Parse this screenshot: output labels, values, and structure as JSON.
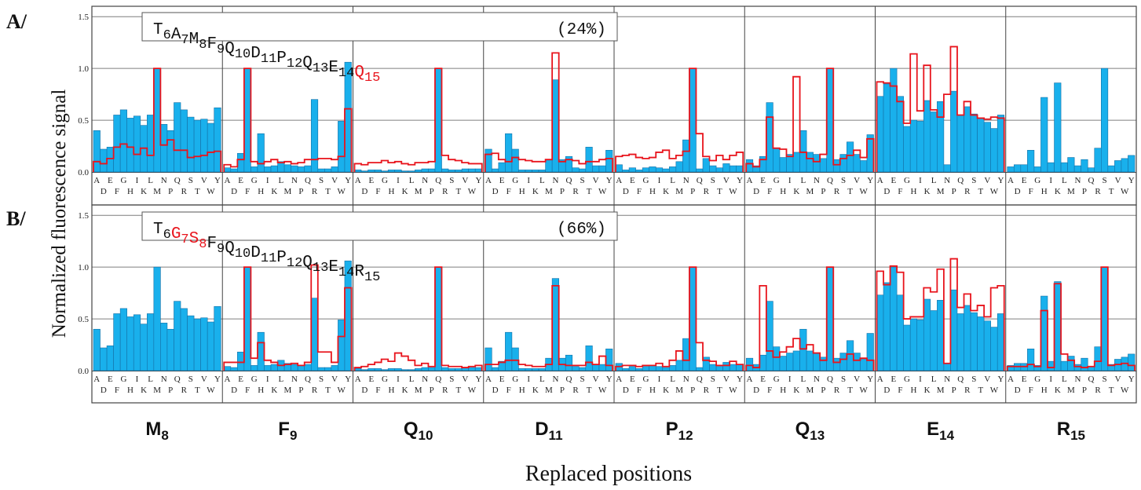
{
  "colors": {
    "bar_fill": "#19b0ec",
    "bar_stroke": "#1570a6",
    "outline": "#e8141c",
    "frame": "#444444",
    "grid": "#7f7f7f",
    "panel_label": "#111111"
  },
  "figure": {
    "ylabel": "Normalized fluorescence signal",
    "xlabel": "Replaced positions",
    "position_labels": [
      {
        "base": "M",
        "sub": "8"
      },
      {
        "base": "F",
        "sub": "9"
      },
      {
        "base": "Q",
        "sub": "10"
      },
      {
        "base": "D",
        "sub": "11"
      },
      {
        "base": "P",
        "sub": "12"
      },
      {
        "base": "Q",
        "sub": "13"
      },
      {
        "base": "E",
        "sub": "14"
      },
      {
        "base": "R",
        "sub": "15"
      }
    ],
    "residues_top": [
      "A",
      "E",
      "G",
      "I",
      "L",
      "N",
      "Q",
      "S",
      "V",
      "Y"
    ],
    "residues_bottom": [
      "D",
      "F",
      "H",
      "K",
      "M",
      "P",
      "R",
      "T",
      "W"
    ]
  },
  "chart_data": {
    "type": "bar",
    "categories": [
      "A",
      "D",
      "E",
      "F",
      "G",
      "H",
      "I",
      "K",
      "L",
      "M",
      "N",
      "P",
      "Q",
      "R",
      "S",
      "T",
      "V",
      "W",
      "Y"
    ],
    "yticks": [
      "0.0",
      "0.5",
      "1.0",
      "1.5"
    ],
    "ylim": [
      0,
      1.6
    ],
    "panels": [
      {
        "label": "A/",
        "sequence": [
          {
            "res": "T",
            "num": "6",
            "red": false
          },
          {
            "res": "A",
            "num": "7",
            "red": false
          },
          {
            "res": "M",
            "num": "8",
            "red": false
          },
          {
            "res": "F",
            "num": "9",
            "red": false
          },
          {
            "res": "Q",
            "num": "10",
            "red": false
          },
          {
            "res": "D",
            "num": "11",
            "red": false
          },
          {
            "res": "P",
            "num": "12",
            "red": false
          },
          {
            "res": "Q",
            "num": "13",
            "red": false
          },
          {
            "res": "E",
            "num": "14",
            "red": false
          },
          {
            "res": "Q",
            "num": "15",
            "red": true
          }
        ],
        "percent": "(24%)",
        "positions": [
          {
            "bars": [
              0.4,
              0.22,
              0.24,
              0.55,
              0.6,
              0.52,
              0.54,
              0.45,
              0.55,
              1.0,
              0.46,
              0.4,
              0.67,
              0.6,
              0.53,
              0.5,
              0.51,
              0.47,
              0.62
            ],
            "outline": [
              0.1,
              0.08,
              0.13,
              0.24,
              0.27,
              0.24,
              0.17,
              0.23,
              0.16,
              1.0,
              0.26,
              0.31,
              0.21,
              0.21,
              0.14,
              0.15,
              0.16,
              0.19,
              0.2
            ]
          },
          {
            "bars": [
              0.04,
              0.03,
              0.18,
              1.0,
              0.05,
              0.37,
              0.05,
              0.06,
              0.1,
              0.07,
              0.06,
              0.05,
              0.06,
              0.7,
              0.03,
              0.03,
              0.05,
              0.49,
              1.06
            ],
            "outline": [
              0.07,
              0.05,
              0.12,
              1.0,
              0.1,
              0.08,
              0.1,
              0.12,
              0.09,
              0.1,
              0.08,
              0.09,
              0.12,
              0.12,
              0.13,
              0.13,
              0.12,
              0.15,
              0.61
            ]
          },
          {
            "bars": [
              0.02,
              0.01,
              0.02,
              0.02,
              0.01,
              0.02,
              0.02,
              0.01,
              0.01,
              0.02,
              0.03,
              0.03,
              1.0,
              0.03,
              0.02,
              0.02,
              0.03,
              0.03,
              0.03
            ],
            "outline": [
              0.08,
              0.07,
              0.09,
              0.09,
              0.11,
              0.09,
              0.1,
              0.08,
              0.07,
              0.09,
              0.09,
              0.1,
              1.0,
              0.16,
              0.12,
              0.11,
              0.09,
              0.08,
              0.08
            ]
          },
          {
            "bars": [
              0.22,
              0.03,
              0.09,
              0.37,
              0.22,
              0.02,
              0.02,
              0.02,
              0.02,
              0.12,
              0.89,
              0.12,
              0.15,
              0.04,
              0.03,
              0.24,
              0.06,
              0.06,
              0.21
            ],
            "outline": [
              0.17,
              0.18,
              0.12,
              0.1,
              0.14,
              0.12,
              0.11,
              0.1,
              0.1,
              0.12,
              1.15,
              0.1,
              0.12,
              0.11,
              0.08,
              0.1,
              0.1,
              0.12,
              0.13
            ]
          },
          {
            "bars": [
              0.07,
              0.02,
              0.04,
              0.02,
              0.04,
              0.05,
              0.04,
              0.03,
              0.05,
              0.1,
              0.31,
              1.0,
              0.03,
              0.13,
              0.06,
              0.04,
              0.08,
              0.06,
              0.06
            ],
            "outline": [
              0.15,
              0.16,
              0.17,
              0.14,
              0.13,
              0.14,
              0.19,
              0.21,
              0.13,
              0.16,
              0.2,
              1.0,
              0.37,
              0.15,
              0.11,
              0.16,
              0.12,
              0.16,
              0.19
            ]
          },
          {
            "bars": [
              0.12,
              0.06,
              0.15,
              0.67,
              0.23,
              0.14,
              0.17,
              0.19,
              0.4,
              0.19,
              0.17,
              0.13,
              1.0,
              0.12,
              0.17,
              0.29,
              0.17,
              0.11,
              0.36
            ],
            "outline": [
              0.08,
              0.05,
              0.12,
              0.53,
              0.23,
              0.22,
              0.15,
              0.92,
              0.19,
              0.13,
              0.1,
              0.17,
              1.0,
              0.07,
              0.13,
              0.16,
              0.21,
              0.14,
              0.32
            ]
          },
          {
            "bars": [
              0.73,
              0.85,
              1.0,
              0.73,
              0.44,
              0.5,
              0.49,
              0.69,
              0.58,
              0.68,
              0.07,
              0.78,
              0.55,
              0.63,
              0.56,
              0.52,
              0.48,
              0.42,
              0.55
            ],
            "outline": [
              0.87,
              0.86,
              0.83,
              0.68,
              0.47,
              1.14,
              0.59,
              1.03,
              0.6,
              0.53,
              0.75,
              1.21,
              0.55,
              0.68,
              0.55,
              0.52,
              0.51,
              0.53,
              0.52
            ]
          },
          {
            "bars": [
              0.05,
              0.07,
              0.07,
              0.21,
              0.05,
              0.72,
              0.09,
              0.86,
              0.09,
              0.14,
              0.06,
              0.12,
              0.04,
              0.23,
              1.0,
              0.06,
              0.11,
              0.13,
              0.16
            ],
            "outline": []
          }
        ]
      },
      {
        "label": "B/",
        "sequence": [
          {
            "res": "T",
            "num": "6",
            "red": false
          },
          {
            "res": "G",
            "num": "7",
            "red": true
          },
          {
            "res": "S",
            "num": "8",
            "red": true
          },
          {
            "res": "F",
            "num": "9",
            "red": false
          },
          {
            "res": "Q",
            "num": "10",
            "red": false
          },
          {
            "res": "D",
            "num": "11",
            "red": false
          },
          {
            "res": "P",
            "num": "12",
            "red": false
          },
          {
            "res": "Q",
            "num": "13",
            "red": false
          },
          {
            "res": "E",
            "num": "14",
            "red": false
          },
          {
            "res": "R",
            "num": "15",
            "red": false
          }
        ],
        "percent": "(66%)",
        "positions": [
          {
            "bars": [
              0.4,
              0.22,
              0.24,
              0.55,
              0.6,
              0.52,
              0.54,
              0.45,
              0.55,
              1.0,
              0.46,
              0.4,
              0.67,
              0.6,
              0.53,
              0.5,
              0.51,
              0.47,
              0.62
            ],
            "outline": []
          },
          {
            "bars": [
              0.04,
              0.03,
              0.18,
              1.0,
              0.05,
              0.37,
              0.05,
              0.06,
              0.1,
              0.07,
              0.06,
              0.05,
              0.06,
              0.7,
              0.03,
              0.03,
              0.05,
              0.49,
              1.06
            ],
            "outline": [
              0.08,
              0.08,
              0.08,
              1.0,
              0.12,
              0.27,
              0.1,
              0.08,
              0.05,
              0.06,
              0.07,
              0.05,
              0.08,
              1.02,
              0.18,
              0.18,
              0.08,
              0.33,
              0.8
            ]
          },
          {
            "bars": [
              0.02,
              0.01,
              0.02,
              0.02,
              0.01,
              0.02,
              0.02,
              0.01,
              0.01,
              0.02,
              0.03,
              0.03,
              1.0,
              0.03,
              0.02,
              0.02,
              0.03,
              0.03,
              0.03
            ],
            "outline": [
              0.03,
              0.04,
              0.06,
              0.08,
              0.11,
              0.09,
              0.17,
              0.14,
              0.1,
              0.05,
              0.07,
              0.04,
              1.0,
              0.05,
              0.04,
              0.04,
              0.03,
              0.04,
              0.05
            ]
          },
          {
            "bars": [
              0.22,
              0.03,
              0.09,
              0.37,
              0.22,
              0.02,
              0.02,
              0.02,
              0.02,
              0.12,
              0.89,
              0.12,
              0.15,
              0.04,
              0.03,
              0.24,
              0.06,
              0.06,
              0.21
            ],
            "outline": [
              0.06,
              0.06,
              0.08,
              0.1,
              0.1,
              0.06,
              0.05,
              0.04,
              0.04,
              0.06,
              0.82,
              0.06,
              0.05,
              0.05,
              0.05,
              0.08,
              0.06,
              0.14,
              0.05
            ]
          },
          {
            "bars": [
              0.07,
              0.02,
              0.04,
              0.02,
              0.04,
              0.05,
              0.04,
              0.03,
              0.05,
              0.1,
              0.31,
              1.0,
              0.03,
              0.13,
              0.06,
              0.04,
              0.08,
              0.06,
              0.06
            ],
            "outline": [
              0.04,
              0.05,
              0.05,
              0.04,
              0.05,
              0.05,
              0.07,
              0.04,
              0.1,
              0.19,
              0.1,
              1.0,
              0.27,
              0.1,
              0.09,
              0.05,
              0.05,
              0.09,
              0.06
            ]
          },
          {
            "bars": [
              0.12,
              0.06,
              0.15,
              0.67,
              0.23,
              0.14,
              0.17,
              0.19,
              0.4,
              0.19,
              0.17,
              0.13,
              1.0,
              0.12,
              0.17,
              0.29,
              0.17,
              0.11,
              0.36
            ],
            "outline": [
              0.05,
              0.03,
              0.82,
              0.19,
              0.13,
              0.18,
              0.23,
              0.31,
              0.21,
              0.25,
              0.17,
              0.1,
              1.0,
              0.08,
              0.11,
              0.16,
              0.1,
              0.12,
              0.1
            ]
          },
          {
            "bars": [
              0.73,
              0.85,
              1.0,
              0.73,
              0.44,
              0.5,
              0.49,
              0.69,
              0.58,
              0.68,
              0.07,
              0.78,
              0.55,
              0.63,
              0.56,
              0.52,
              0.48,
              0.42,
              0.55
            ],
            "outline": [
              0.96,
              0.83,
              1.01,
              0.95,
              0.5,
              0.52,
              0.52,
              0.8,
              0.76,
              0.98,
              0.07,
              1.08,
              0.61,
              0.74,
              0.58,
              0.63,
              0.52,
              0.8,
              0.82
            ]
          },
          {
            "bars": [
              0.05,
              0.07,
              0.07,
              0.21,
              0.05,
              0.72,
              0.09,
              0.86,
              0.09,
              0.14,
              0.06,
              0.12,
              0.04,
              0.23,
              1.0,
              0.06,
              0.11,
              0.13,
              0.16
            ],
            "outline": [
              0.04,
              0.04,
              0.04,
              0.06,
              0.04,
              0.58,
              0.03,
              0.84,
              0.16,
              0.1,
              0.04,
              0.03,
              0.04,
              0.09,
              1.0,
              0.05,
              0.06,
              0.07,
              0.05
            ]
          }
        ]
      }
    ]
  }
}
